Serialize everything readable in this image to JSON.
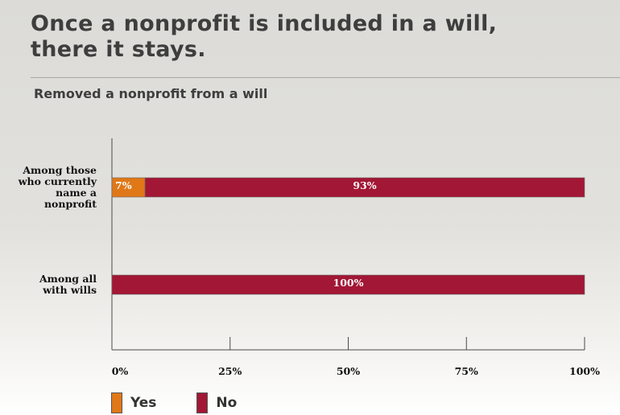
{
  "title_line1": "Once a nonprofit is included in a will,",
  "title_line2": "there it stays.",
  "subtitle": "Removed a nonprofit from a will",
  "colors": {
    "yes": "#e07818",
    "no": "#a21735"
  },
  "chart_data": {
    "type": "bar",
    "orientation": "horizontal",
    "stacked": true,
    "title": "Removed a nonprofit from a will",
    "categories": [
      [
        "Among those",
        "who currently",
        "name a",
        "nonprofit"
      ],
      [
        "Among all",
        "with wills"
      ]
    ],
    "series": [
      {
        "name": "Yes",
        "values": [
          7,
          0
        ],
        "labels": [
          "7%",
          ""
        ]
      },
      {
        "name": "No",
        "values": [
          93,
          100
        ],
        "labels": [
          "93%",
          "100%"
        ]
      }
    ],
    "xlim": [
      0,
      100
    ],
    "xticks": [
      "0%",
      "25%",
      "50%",
      "75%",
      "100%"
    ],
    "xlabel": "",
    "ylabel": "",
    "legend_position": "bottom-left",
    "grid": false
  }
}
